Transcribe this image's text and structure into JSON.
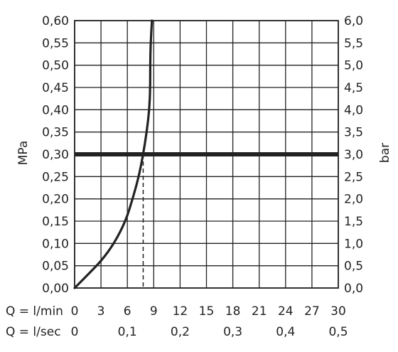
{
  "chart_data": {
    "type": "line",
    "title": "",
    "ylabel_left": "MPa",
    "ylabel_right": "bar",
    "xlabel_flow_min": "Q = l/min",
    "xlabel_flow_sec": "Q = l/sec",
    "xlim": [
      0,
      30
    ],
    "ylim": [
      0,
      0.6
    ],
    "grid": true,
    "x_ticks_min": [
      "0",
      "3",
      "6",
      "9",
      "12",
      "15",
      "18",
      "21",
      "24",
      "27",
      "30"
    ],
    "x_ticks_sec": [
      {
        "value": 0,
        "label": "0"
      },
      {
        "value": 0.1,
        "label": "0,1"
      },
      {
        "value": 0.2,
        "label": "0,2"
      },
      {
        "value": 0.3,
        "label": "0,3"
      },
      {
        "value": 0.4,
        "label": "0,4"
      },
      {
        "value": 0.5,
        "label": "0,5"
      }
    ],
    "y_ticks_left": [
      "0,00",
      "0,05",
      "0,10",
      "0,15",
      "0,20",
      "0,25",
      "0,30",
      "0,35",
      "0,40",
      "0,45",
      "0,50",
      "0,55",
      "0,60"
    ],
    "y_ticks_right": [
      "0,0",
      "0,5",
      "1,0",
      "1,5",
      "2,0",
      "2,5",
      "3,0",
      "3,5",
      "4,0",
      "4,5",
      "5,0",
      "5,5",
      "6,0"
    ],
    "series": [
      {
        "x": [
          0,
          1.5,
          3,
          4.5,
          5.8,
          6.6,
          7.3,
          7.8,
          8.2,
          8.5,
          8.6,
          8.6,
          8.65,
          8.8
        ],
        "y": [
          0,
          0.03,
          0.06,
          0.1,
          0.15,
          0.2,
          0.25,
          0.3,
          0.35,
          0.4,
          0.45,
          0.5,
          0.55,
          0.6
        ]
      }
    ],
    "reference_line_y": 0.3,
    "reference_drop_x": 7.8
  }
}
